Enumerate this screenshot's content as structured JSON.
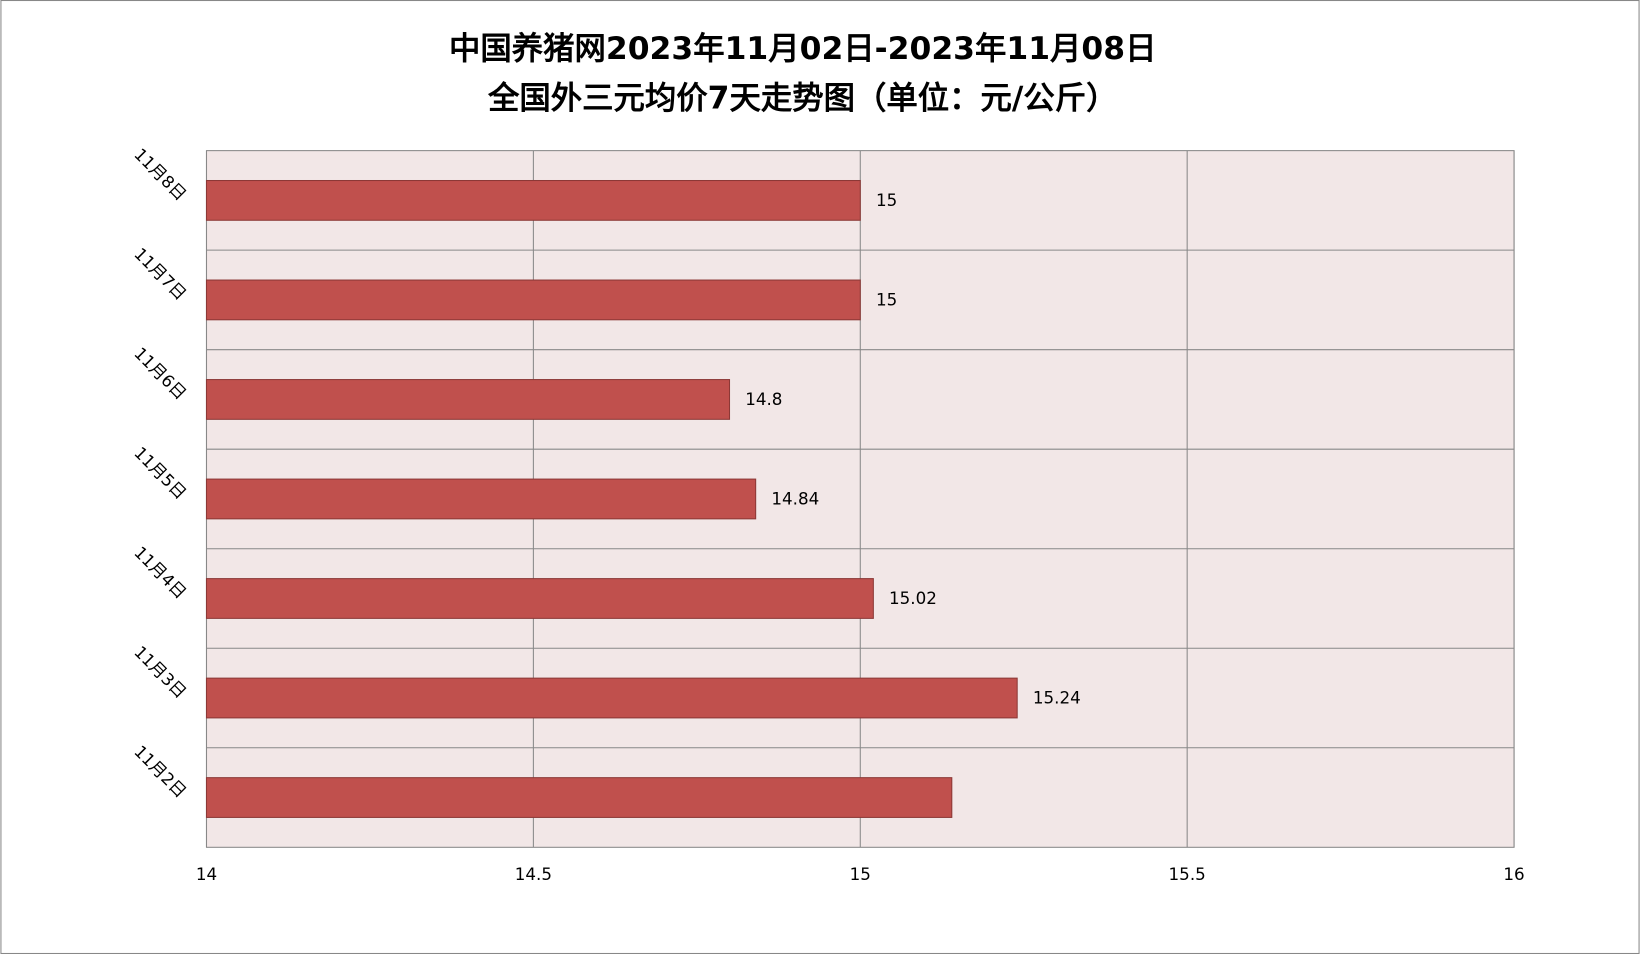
{
  "chart_data": {
    "type": "barh",
    "title": "中国养猪网2023年11月02日-2023年11月08日",
    "subtitle": "全国外三元均价7天走势图（单位：元/公斤）",
    "categories": [
      "11月2日",
      "11月3日",
      "11月4日",
      "11月5日",
      "11月6日",
      "11月7日",
      "11月8日"
    ],
    "values": [
      15.14,
      15.24,
      15.02,
      14.84,
      14.8,
      15,
      15
    ],
    "value_labels": [
      null,
      "15.24",
      "15.02",
      "14.84",
      "14.8",
      "15",
      "15"
    ],
    "color": "#c0504d",
    "xlim": [
      14,
      16
    ],
    "xticks": [
      14,
      14.5,
      15,
      15.5,
      16
    ],
    "grid": true
  }
}
